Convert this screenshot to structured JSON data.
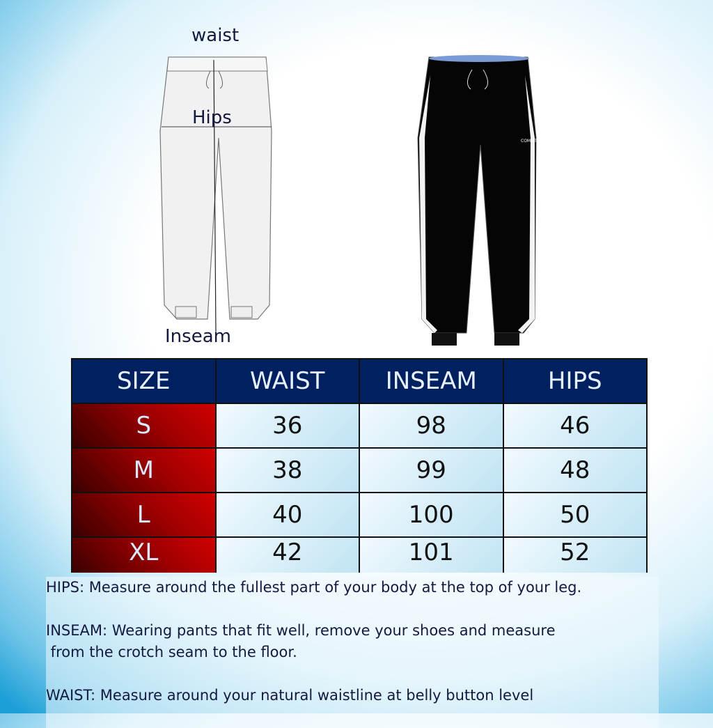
{
  "labels": {
    "waist": "waist",
    "hips": "Hips",
    "inseam": "Inseam"
  },
  "logo": "COMFIT",
  "table": {
    "headers": [
      "SIZE",
      "WAIST",
      "INSEAM",
      "HIPS"
    ],
    "rows": [
      [
        "S",
        "36",
        "98",
        "46"
      ],
      [
        "M",
        "38",
        "99",
        "48"
      ],
      [
        "L",
        "40",
        "100",
        "50"
      ],
      [
        "XL",
        "42",
        "101",
        "52"
      ]
    ]
  },
  "notes": {
    "hips": "HIPS: Measure around the fullest part of your body at the top of your leg.",
    "inseam": "INSEAM: Wearing pants that fit well, remove your shoes and measure\n from the crotch seam to the floor.",
    "waist": "WAIST: Measure around your natural waistline at belly button level"
  },
  "colors": {
    "header": "#002060",
    "size_col": "#a00000",
    "text": "#14193f"
  }
}
